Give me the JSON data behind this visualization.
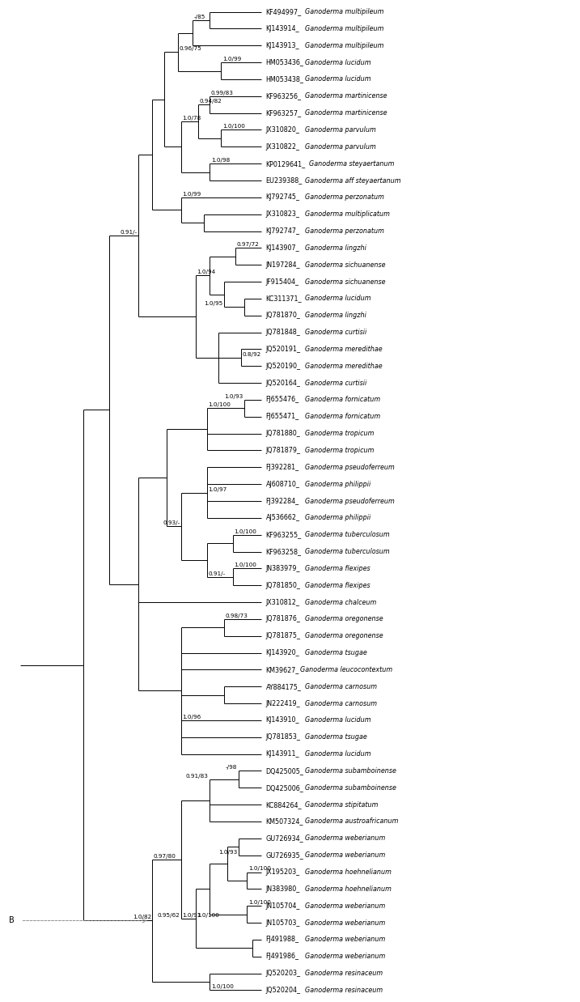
{
  "taxa": [
    "KF494997_Ganoderma multipileum",
    "KJ143914_Ganoderma multipileum",
    "KJ143913_Ganoderma multipileum",
    "HM053436_Ganoderma lucidum",
    "HM053438_Ganoderma lucidum",
    "KF963256_Ganoderma martinicense",
    "KF963257_Ganoderma martinicense",
    "JX310820_Ganoderma parvulum",
    "JX310822_Ganoderma parvulum",
    "KP0129641_Ganoderma steyaertanum",
    "EU239388_Ganoderma aff steyaertanum",
    "KJ792745_Ganoderma perzonatum",
    "JX310823_Ganoderma multiplicatum",
    "KJ792747_Ganoderma perzonatum",
    "KJ143907_Ganoderma lingzhi",
    "JN197284_Ganoderma sichuanense",
    "JF915404_Ganoderma sichuanense",
    "KC311371_Ganoderma lucidum",
    "JQ781870_Ganoderma lingzhi",
    "JQ781848_Ganoderma curtisii",
    "JQ520191_Ganoderma meredithae",
    "JQ520190_Ganoderma meredithae",
    "JQ520164_Ganoderma curtisii",
    "FJ655476_Ganoderma fornicatum",
    "FJ655471_Ganoderma fornicatum",
    "JQ781880_Ganoderma tropicum",
    "JQ781879_Ganoderma tropicum",
    "FJ392281_Ganoderma pseudoferreum",
    "AJ608710_Ganoderma philippii",
    "FJ392284_Ganoderma pseudoferreum",
    "AJ536662_Ganoderma philippii",
    "KF963255_Ganoderma tuberculosum",
    "KF963258_Ganoderma tuberculosum",
    "JN383979_Ganoderma flexipes",
    "JQ781850_Ganoderma flexipes",
    "JX310812_Ganoderma chalceum",
    "JQ781876_Ganoderma oregonense",
    "JQ781875_Ganoderma oregonense",
    "KJ143920_Ganoderma tsugae",
    "KM39627_Ganoderma leucocontextum",
    "AY884175_Ganoderma carnosum",
    "JN222419_Ganoderma carnosum",
    "KJ143910_Ganoderma lucidum",
    "JQ781853_Ganoderma tsugae",
    "KJ143911_Ganoderma lucidum",
    "DQ425005_Ganoderma subamboinense",
    "DQ425006_Ganoderma subamboinense",
    "KC884264_Ganoderma stipitatum",
    "KM507324_Ganoderma austroafricanum",
    "GU726934_Ganoderma weberianum",
    "GU726935_Ganoderma weberianum",
    "JX195203_Ganoderma hoehnelianum",
    "JN383980_Ganoderma hoehnelianum",
    "JN105704_Ganoderma weberianum",
    "JN105703_Ganoderma weberianum",
    "FJ491988_Ganoderma weberianum",
    "FJ491986_Ganoderma weberianum",
    "JQ520203_Ganoderma resinaceum",
    "JQ520204_Ganoderma resinaceum"
  ],
  "figsize": [
    7.17,
    12.38
  ],
  "dpi": 100,
  "bg": "#ffffff",
  "lc": "#000000",
  "lw": 0.7,
  "label_fs": 5.8,
  "support_fs": 5.2
}
